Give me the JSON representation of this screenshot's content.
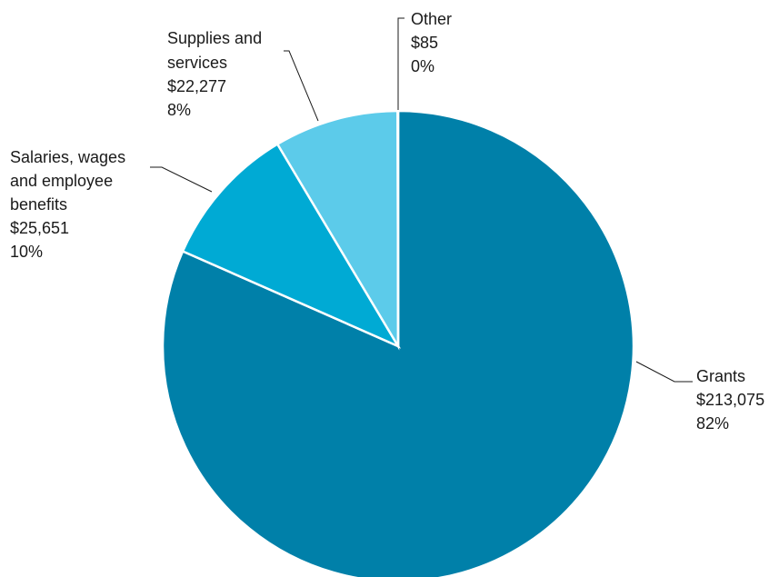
{
  "chart_data": {
    "type": "pie",
    "title": "",
    "start_angle": "12 o'clock",
    "direction": "clockwise",
    "legend": "none",
    "slices": [
      {
        "key": "grants",
        "label_lines": [
          "Grants"
        ],
        "value": 213075,
        "value_label": "$213,075",
        "percent_label": "82%",
        "color": "#0080a9"
      },
      {
        "key": "salaries",
        "label_lines": [
          "Salaries, wages",
          "and employee",
          "benefits"
        ],
        "value": 25651,
        "value_label": "$25,651",
        "percent_label": "10%",
        "color": "#00aad4"
      },
      {
        "key": "supplies",
        "label_lines": [
          "Supplies and",
          "services"
        ],
        "value": 22277,
        "value_label": "$22,277",
        "percent_label": "8%",
        "color": "#5ccbea"
      },
      {
        "key": "other",
        "label_lines": [
          "Other"
        ],
        "value": 85,
        "value_label": "$85",
        "percent_label": "0%",
        "color": "#9ad9ef"
      }
    ]
  }
}
